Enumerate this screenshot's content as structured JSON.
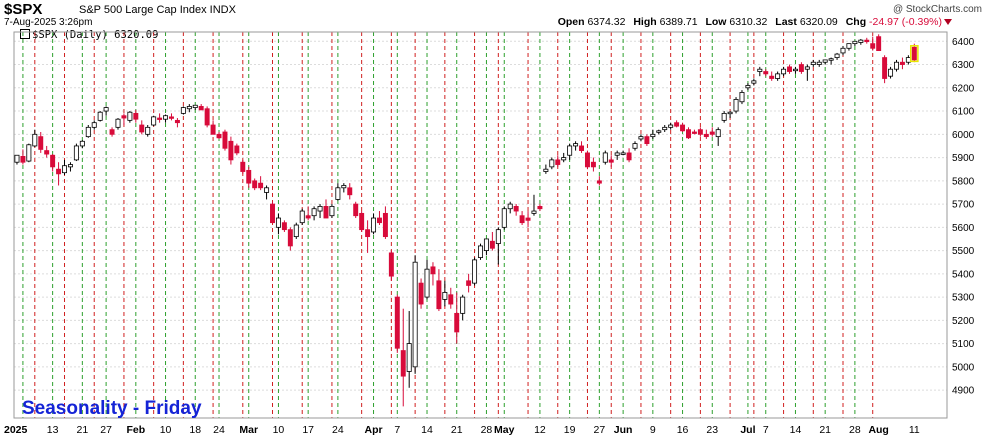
{
  "header": {
    "ticker": "$SPX",
    "name": "S&P 500 Large Cap Index INDX",
    "watermark": "@ StockCharts.com",
    "date": "7-Aug-2025 3:26pm",
    "open_label": "Open",
    "open": "6374.32",
    "high_label": "High",
    "high": "6389.71",
    "low_label": "Low",
    "low": "6310.32",
    "last_label": "Last",
    "last": "6320.09",
    "chg_label": "Chg",
    "chg": "-24.97 (-0.39%)"
  },
  "legend": {
    "label": "$SPX (Daily) 6320.09"
  },
  "overlay_text": "Seasonality - Friday",
  "colors": {
    "up": "#ffffff",
    "down": "#d80b3a",
    "friday_line": "#d02020",
    "other_line": "#2ea02e",
    "overlay": "#1524d6"
  },
  "chart_data": {
    "type": "candlestick",
    "title": "$SPX (Daily) 6320.09",
    "ylim": [
      4780,
      6440
    ],
    "y_ticks": [
      4900,
      5000,
      5100,
      5200,
      5300,
      5400,
      5500,
      5600,
      5700,
      5800,
      5900,
      6000,
      6100,
      6200,
      6300,
      6400
    ],
    "y_axis_position": "right",
    "x_tick_labels": [
      {
        "label": "2025",
        "index": 0
      },
      {
        "label": "13",
        "index": 6
      },
      {
        "label": "21",
        "index": 11
      },
      {
        "label": "27",
        "index": 15
      },
      {
        "label": "Feb",
        "index": 20
      },
      {
        "label": "10",
        "index": 25
      },
      {
        "label": "18",
        "index": 30
      },
      {
        "label": "24",
        "index": 34
      },
      {
        "label": "Mar",
        "index": 39
      },
      {
        "label": "10",
        "index": 44
      },
      {
        "label": "17",
        "index": 49
      },
      {
        "label": "24",
        "index": 54
      },
      {
        "label": "Apr",
        "index": 60
      },
      {
        "label": "7",
        "index": 64
      },
      {
        "label": "14",
        "index": 69
      },
      {
        "label": "21",
        "index": 74
      },
      {
        "label": "28",
        "index": 79
      },
      {
        "label": "May",
        "index": 82
      },
      {
        "label": "12",
        "index": 88
      },
      {
        "label": "19",
        "index": 93
      },
      {
        "label": "27",
        "index": 98
      },
      {
        "label": "Jun",
        "index": 102
      },
      {
        "label": "9",
        "index": 107
      },
      {
        "label": "16",
        "index": 112
      },
      {
        "label": "23",
        "index": 117
      },
      {
        "label": "Jul",
        "index": 123
      },
      {
        "label": "7",
        "index": 126
      },
      {
        "label": "14",
        "index": 131
      },
      {
        "label": "21",
        "index": 136
      },
      {
        "label": "28",
        "index": 141
      },
      {
        "label": "Aug",
        "index": 145
      },
      {
        "label": "11",
        "index": 151
      }
    ],
    "friday_lines": [
      3,
      8,
      13,
      18,
      23,
      28,
      33,
      38,
      43,
      48,
      53,
      58,
      63,
      67,
      72,
      77,
      81,
      86,
      91,
      96,
      100,
      105,
      110,
      115,
      120,
      124,
      129,
      134,
      139,
      144
    ],
    "other_lines": [
      1,
      6,
      11,
      15,
      20,
      25,
      30,
      34,
      39,
      44,
      49,
      54,
      60,
      64,
      69,
      74,
      79,
      82,
      88,
      93,
      98,
      102,
      107,
      112,
      117,
      123,
      126,
      131,
      136,
      141
    ],
    "candles": [
      {
        "o": 5880,
        "h": 5910,
        "l": 5870,
        "c": 5910
      },
      {
        "o": 5905,
        "h": 5935,
        "l": 5870,
        "c": 5880
      },
      {
        "o": 5885,
        "h": 5960,
        "l": 5880,
        "c": 5955
      },
      {
        "o": 5950,
        "h": 6020,
        "l": 5945,
        "c": 6000
      },
      {
        "o": 5990,
        "h": 6010,
        "l": 5920,
        "c": 5935
      },
      {
        "o": 5930,
        "h": 5950,
        "l": 5900,
        "c": 5915
      },
      {
        "o": 5910,
        "h": 5915,
        "l": 5840,
        "c": 5860
      },
      {
        "o": 5850,
        "h": 5880,
        "l": 5780,
        "c": 5830
      },
      {
        "o": 5835,
        "h": 5890,
        "l": 5825,
        "c": 5865
      },
      {
        "o": 5860,
        "h": 5880,
        "l": 5840,
        "c": 5870
      },
      {
        "o": 5890,
        "h": 5960,
        "l": 5885,
        "c": 5950
      },
      {
        "o": 5950,
        "h": 5975,
        "l": 5940,
        "c": 5970
      },
      {
        "o": 5990,
        "h": 6040,
        "l": 5985,
        "c": 6030
      },
      {
        "o": 6030,
        "h": 6060,
        "l": 6020,
        "c": 6050
      },
      {
        "o": 6060,
        "h": 6100,
        "l": 6055,
        "c": 6095
      },
      {
        "o": 6100,
        "h": 6120,
        "l": 6080,
        "c": 6115
      },
      {
        "o": 6020,
        "h": 6030,
        "l": 5990,
        "c": 6000
      },
      {
        "o": 6030,
        "h": 6070,
        "l": 6020,
        "c": 6065
      },
      {
        "o": 6080,
        "h": 6090,
        "l": 6040,
        "c": 6070
      },
      {
        "o": 6060,
        "h": 6100,
        "l": 6050,
        "c": 6095
      },
      {
        "o": 6090,
        "h": 6105,
        "l": 6050,
        "c": 6065
      },
      {
        "o": 6040,
        "h": 6060,
        "l": 6000,
        "c": 6010
      },
      {
        "o": 6000,
        "h": 6040,
        "l": 5990,
        "c": 6030
      },
      {
        "o": 6040,
        "h": 6080,
        "l": 6035,
        "c": 6075
      },
      {
        "o": 6070,
        "h": 6090,
        "l": 6050,
        "c": 6065
      },
      {
        "o": 6065,
        "h": 6085,
        "l": 6050,
        "c": 6080
      },
      {
        "o": 6075,
        "h": 6090,
        "l": 6060,
        "c": 6070
      },
      {
        "o": 6060,
        "h": 6070,
        "l": 6030,
        "c": 6050
      },
      {
        "o": 6090,
        "h": 6120,
        "l": 6085,
        "c": 6115
      },
      {
        "o": 6110,
        "h": 6130,
        "l": 6095,
        "c": 6120
      },
      {
        "o": 6115,
        "h": 6125,
        "l": 6105,
        "c": 6125
      },
      {
        "o": 6120,
        "h": 6130,
        "l": 6110,
        "c": 6105
      },
      {
        "o": 6110,
        "h": 6120,
        "l": 6030,
        "c": 6040
      },
      {
        "o": 6040,
        "h": 6060,
        "l": 6000,
        "c": 6000
      },
      {
        "o": 6000,
        "h": 6010,
        "l": 5980,
        "c": 5985
      },
      {
        "o": 6010,
        "h": 6020,
        "l": 5930,
        "c": 5940
      },
      {
        "o": 5970,
        "h": 5990,
        "l": 5870,
        "c": 5890
      },
      {
        "o": 5950,
        "h": 5960,
        "l": 5910,
        "c": 5920
      },
      {
        "o": 5880,
        "h": 5890,
        "l": 5830,
        "c": 5840
      },
      {
        "o": 5845,
        "h": 5860,
        "l": 5770,
        "c": 5790
      },
      {
        "o": 5800,
        "h": 5810,
        "l": 5760,
        "c": 5770
      },
      {
        "o": 5790,
        "h": 5820,
        "l": 5760,
        "c": 5770
      },
      {
        "o": 5750,
        "h": 5780,
        "l": 5720,
        "c": 5770
      },
      {
        "o": 5700,
        "h": 5710,
        "l": 5620,
        "c": 5620
      },
      {
        "o": 5600,
        "h": 5660,
        "l": 5570,
        "c": 5640
      },
      {
        "o": 5620,
        "h": 5630,
        "l": 5580,
        "c": 5590
      },
      {
        "o": 5590,
        "h": 5600,
        "l": 5500,
        "c": 5520
      },
      {
        "o": 5560,
        "h": 5620,
        "l": 5550,
        "c": 5610
      },
      {
        "o": 5620,
        "h": 5680,
        "l": 5610,
        "c": 5670
      },
      {
        "o": 5650,
        "h": 5690,
        "l": 5630,
        "c": 5640
      },
      {
        "o": 5650,
        "h": 5690,
        "l": 5630,
        "c": 5680
      },
      {
        "o": 5670,
        "h": 5700,
        "l": 5640,
        "c": 5690
      },
      {
        "o": 5690,
        "h": 5720,
        "l": 5640,
        "c": 5640
      },
      {
        "o": 5650,
        "h": 5700,
        "l": 5640,
        "c": 5690
      },
      {
        "o": 5720,
        "h": 5790,
        "l": 5715,
        "c": 5770
      },
      {
        "o": 5770,
        "h": 5790,
        "l": 5750,
        "c": 5780
      },
      {
        "o": 5770,
        "h": 5790,
        "l": 5720,
        "c": 5740
      },
      {
        "o": 5700,
        "h": 5710,
        "l": 5640,
        "c": 5650
      },
      {
        "o": 5660,
        "h": 5670,
        "l": 5580,
        "c": 5590
      },
      {
        "o": 5590,
        "h": 5630,
        "l": 5490,
        "c": 5560
      },
      {
        "o": 5580,
        "h": 5660,
        "l": 5570,
        "c": 5640
      },
      {
        "o": 5640,
        "h": 5670,
        "l": 5610,
        "c": 5620
      },
      {
        "o": 5660,
        "h": 5690,
        "l": 5550,
        "c": 5560
      },
      {
        "o": 5490,
        "h": 5500,
        "l": 5370,
        "c": 5390
      },
      {
        "o": 5300,
        "h": 5310,
        "l": 5060,
        "c": 5080
      },
      {
        "o": 5070,
        "h": 5250,
        "l": 4830,
        "c": 4960
      },
      {
        "o": 4980,
        "h": 5240,
        "l": 4910,
        "c": 5100
      },
      {
        "o": 5000,
        "h": 5480,
        "l": 4970,
        "c": 5450
      },
      {
        "o": 5360,
        "h": 5380,
        "l": 5250,
        "c": 5270
      },
      {
        "o": 5300,
        "h": 5460,
        "l": 5290,
        "c": 5420
      },
      {
        "o": 5430,
        "h": 5450,
        "l": 5350,
        "c": 5400
      },
      {
        "o": 5370,
        "h": 5420,
        "l": 5240,
        "c": 5250
      },
      {
        "o": 5290,
        "h": 5370,
        "l": 5260,
        "c": 5320
      },
      {
        "o": 5310,
        "h": 5340,
        "l": 5250,
        "c": 5270
      },
      {
        "o": 5230,
        "h": 5320,
        "l": 5100,
        "c": 5150
      },
      {
        "o": 5230,
        "h": 5310,
        "l": 5200,
        "c": 5300
      },
      {
        "o": 5370,
        "h": 5400,
        "l": 5320,
        "c": 5350
      },
      {
        "o": 5360,
        "h": 5470,
        "l": 5350,
        "c": 5460
      },
      {
        "o": 5470,
        "h": 5530,
        "l": 5460,
        "c": 5520
      },
      {
        "o": 5500,
        "h": 5550,
        "l": 5480,
        "c": 5550
      },
      {
        "o": 5540,
        "h": 5580,
        "l": 5500,
        "c": 5510
      },
      {
        "o": 5530,
        "h": 5600,
        "l": 5440,
        "c": 5590
      },
      {
        "o": 5600,
        "h": 5690,
        "l": 5590,
        "c": 5680
      },
      {
        "o": 5680,
        "h": 5710,
        "l": 5660,
        "c": 5700
      },
      {
        "o": 5690,
        "h": 5700,
        "l": 5650,
        "c": 5670
      },
      {
        "o": 5650,
        "h": 5670,
        "l": 5610,
        "c": 5620
      },
      {
        "o": 5640,
        "h": 5670,
        "l": 5600,
        "c": 5630
      },
      {
        "o": 5660,
        "h": 5740,
        "l": 5650,
        "c": 5670
      },
      {
        "o": 5690,
        "h": 5700,
        "l": 5670,
        "c": 5680
      },
      {
        "o": 5840,
        "h": 5870,
        "l": 5830,
        "c": 5850
      },
      {
        "o": 5860,
        "h": 5900,
        "l": 5850,
        "c": 5890
      },
      {
        "o": 5890,
        "h": 5910,
        "l": 5860,
        "c": 5870
      },
      {
        "o": 5890,
        "h": 5920,
        "l": 5880,
        "c": 5900
      },
      {
        "o": 5910,
        "h": 5960,
        "l": 5890,
        "c": 5950
      },
      {
        "o": 5950,
        "h": 5970,
        "l": 5930,
        "c": 5960
      },
      {
        "o": 5950,
        "h": 5970,
        "l": 5920,
        "c": 5930
      },
      {
        "o": 5920,
        "h": 5930,
        "l": 5850,
        "c": 5860
      },
      {
        "o": 5880,
        "h": 5900,
        "l": 5840,
        "c": 5860
      },
      {
        "o": 5800,
        "h": 5820,
        "l": 5780,
        "c": 5790
      },
      {
        "o": 5880,
        "h": 5930,
        "l": 5870,
        "c": 5920
      },
      {
        "o": 5890,
        "h": 5910,
        "l": 5860,
        "c": 5880
      },
      {
        "o": 5910,
        "h": 5930,
        "l": 5890,
        "c": 5920
      },
      {
        "o": 5920,
        "h": 5930,
        "l": 5910,
        "c": 5920
      },
      {
        "o": 5920,
        "h": 5940,
        "l": 5880,
        "c": 5890
      },
      {
        "o": 5940,
        "h": 5970,
        "l": 5930,
        "c": 5960
      },
      {
        "o": 5980,
        "h": 6000,
        "l": 5970,
        "c": 5990
      },
      {
        "o": 5990,
        "h": 6000,
        "l": 5950,
        "c": 5960
      },
      {
        "o": 5990,
        "h": 6020,
        "l": 5980,
        "c": 6000
      },
      {
        "o": 6010,
        "h": 6020,
        "l": 6000,
        "c": 6015
      },
      {
        "o": 6020,
        "h": 6040,
        "l": 6010,
        "c": 6030
      },
      {
        "o": 6030,
        "h": 6050,
        "l": 6020,
        "c": 6040
      },
      {
        "o": 6050,
        "h": 6060,
        "l": 6030,
        "c": 6035
      },
      {
        "o": 6040,
        "h": 6050,
        "l": 6010,
        "c": 6015
      },
      {
        "o": 6020,
        "h": 6030,
        "l": 5980,
        "c": 5985
      },
      {
        "o": 6010,
        "h": 6020,
        "l": 6000,
        "c": 6005
      },
      {
        "o": 6020,
        "h": 6030,
        "l": 5990,
        "c": 6000
      },
      {
        "o": 6000,
        "h": 6020,
        "l": 5980,
        "c": 5990
      },
      {
        "o": 6010,
        "h": 6030,
        "l": 5990,
        "c": 6000
      },
      {
        "o": 5990,
        "h": 6030,
        "l": 5950,
        "c": 6020
      },
      {
        "o": 6060,
        "h": 6100,
        "l": 6050,
        "c": 6090
      },
      {
        "o": 6090,
        "h": 6100,
        "l": 6070,
        "c": 6095
      },
      {
        "o": 6100,
        "h": 6160,
        "l": 6090,
        "c": 6150
      },
      {
        "o": 6140,
        "h": 6190,
        "l": 6130,
        "c": 6180
      },
      {
        "o": 6200,
        "h": 6220,
        "l": 6190,
        "c": 6210
      },
      {
        "o": 6220,
        "h": 6240,
        "l": 6210,
        "c": 6230
      },
      {
        "o": 6270,
        "h": 6290,
        "l": 6250,
        "c": 6280
      },
      {
        "o": 6270,
        "h": 6280,
        "l": 6250,
        "c": 6260
      },
      {
        "o": 6250,
        "h": 6270,
        "l": 6230,
        "c": 6240
      },
      {
        "o": 6240,
        "h": 6270,
        "l": 6230,
        "c": 6260
      },
      {
        "o": 6260,
        "h": 6290,
        "l": 6250,
        "c": 6280
      },
      {
        "o": 6290,
        "h": 6300,
        "l": 6260,
        "c": 6270
      },
      {
        "o": 6280,
        "h": 6290,
        "l": 6260,
        "c": 6280
      },
      {
        "o": 6300,
        "h": 6310,
        "l": 6260,
        "c": 6270
      },
      {
        "o": 6280,
        "h": 6300,
        "l": 6230,
        "c": 6290
      },
      {
        "o": 6300,
        "h": 6320,
        "l": 6290,
        "c": 6310
      },
      {
        "o": 6300,
        "h": 6320,
        "l": 6290,
        "c": 6310
      },
      {
        "o": 6310,
        "h": 6320,
        "l": 6300,
        "c": 6320
      },
      {
        "o": 6320,
        "h": 6330,
        "l": 6300,
        "c": 6325
      },
      {
        "o": 6330,
        "h": 6350,
        "l": 6320,
        "c": 6345
      },
      {
        "o": 6350,
        "h": 6380,
        "l": 6340,
        "c": 6370
      },
      {
        "o": 6370,
        "h": 6390,
        "l": 6360,
        "c": 6390
      },
      {
        "o": 6390,
        "h": 6400,
        "l": 6380,
        "c": 6400
      },
      {
        "o": 6395,
        "h": 6410,
        "l": 6385,
        "c": 6405
      },
      {
        "o": 6405,
        "h": 6415,
        "l": 6390,
        "c": 6400
      },
      {
        "o": 6390,
        "h": 6420,
        "l": 6360,
        "c": 6370
      },
      {
        "o": 6420,
        "h": 6430,
        "l": 6360,
        "c": 6360
      },
      {
        "o": 6330,
        "h": 6340,
        "l": 6220,
        "c": 6240
      },
      {
        "o": 6250,
        "h": 6290,
        "l": 6240,
        "c": 6280
      },
      {
        "o": 6280,
        "h": 6320,
        "l": 6270,
        "c": 6310
      },
      {
        "o": 6310,
        "h": 6330,
        "l": 6280,
        "c": 6300
      },
      {
        "o": 6310,
        "h": 6340,
        "l": 6300,
        "c": 6330
      },
      {
        "o": 6374.32,
        "h": 6389.71,
        "l": 6310.32,
        "c": 6320.09
      }
    ]
  }
}
